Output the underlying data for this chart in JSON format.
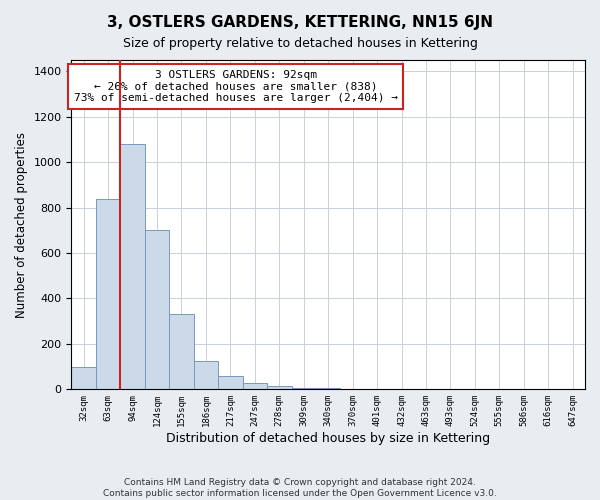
{
  "title": "3, OSTLERS GARDENS, KETTERING, NN15 6JN",
  "subtitle": "Size of property relative to detached houses in Kettering",
  "xlabel": "Distribution of detached houses by size in Kettering",
  "ylabel": "Number of detached properties",
  "bin_labels": [
    "32sqm",
    "63sqm",
    "94sqm",
    "124sqm",
    "155sqm",
    "186sqm",
    "217sqm",
    "247sqm",
    "278sqm",
    "309sqm",
    "340sqm",
    "370sqm",
    "401sqm",
    "432sqm",
    "463sqm",
    "493sqm",
    "524sqm",
    "555sqm",
    "586sqm",
    "616sqm",
    "647sqm"
  ],
  "bar_heights": [
    100,
    838,
    1080,
    700,
    330,
    125,
    60,
    30,
    15,
    8,
    4,
    2,
    0,
    0,
    0,
    0,
    0,
    0,
    0,
    0
  ],
  "ylim": [
    0,
    1450
  ],
  "yticks": [
    0,
    200,
    400,
    600,
    800,
    1000,
    1200,
    1400
  ],
  "bar_color": "#ccd9e8",
  "bar_edge_color": "#7799bb",
  "red_line_x": 1.5,
  "red_line_color": "#cc2222",
  "property_label": "3 OSTLERS GARDENS: 92sqm",
  "annotation_line1": "← 26% of detached houses are smaller (838)",
  "annotation_line2": "73% of semi-detached houses are larger (2,404) →",
  "annotation_box_color": "#ffffff",
  "annotation_box_edge": "#cc2222",
  "footnote1": "Contains HM Land Registry data © Crown copyright and database right 2024.",
  "footnote2": "Contains public sector information licensed under the Open Government Licence v3.0.",
  "bg_color": "#e8edf2",
  "plot_bg_color": "#ffffff",
  "grid_color": "#c8d0dc"
}
